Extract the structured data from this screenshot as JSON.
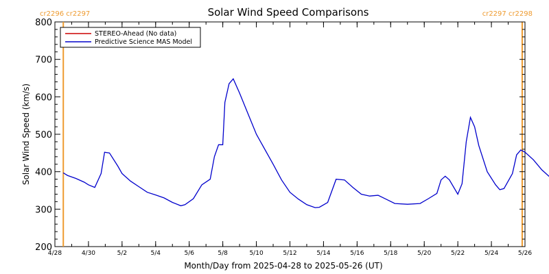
{
  "chart_data": {
    "type": "line",
    "title": "Solar Wind Speed Comparisons",
    "xlabel": "Month/Day from 2025-04-28 to 2025-05-26 (UT)",
    "ylabel": "Solar Wind Speed (km/s)",
    "xlim": [
      "2025-04-28",
      "2025-05-26"
    ],
    "ylim": [
      200,
      800
    ],
    "yticks": [
      200,
      300,
      400,
      500,
      600,
      700,
      800
    ],
    "xticks": [
      {
        "date": "2025-04-28",
        "label": "4/28"
      },
      {
        "date": "2025-04-30",
        "label": "4/30"
      },
      {
        "date": "2025-05-02",
        "label": "5/2"
      },
      {
        "date": "2025-05-04",
        "label": "5/4"
      },
      {
        "date": "2025-05-06",
        "label": "5/6"
      },
      {
        "date": "2025-05-08",
        "label": "5/8"
      },
      {
        "date": "2025-05-10",
        "label": "5/10"
      },
      {
        "date": "2025-05-12",
        "label": "5/12"
      },
      {
        "date": "2025-05-14",
        "label": "5/14"
      },
      {
        "date": "2025-05-16",
        "label": "5/16"
      },
      {
        "date": "2025-05-18",
        "label": "5/18"
      },
      {
        "date": "2025-05-20",
        "label": "5/20"
      },
      {
        "date": "2025-05-22",
        "label": "5/22"
      },
      {
        "date": "2025-05-24",
        "label": "5/24"
      },
      {
        "date": "2025-05-26",
        "label": "5/26"
      }
    ],
    "legend": {
      "placement": "top-left",
      "entries": [
        {
          "label": "STEREO-Ahead (No data)",
          "color": "#cc0000"
        },
        {
          "label": "Predictive Science MAS Model",
          "color": "#0000cc"
        }
      ]
    },
    "carrington_markers": [
      {
        "date": "2025-04-28 12:00",
        "left_label": "cr2296",
        "right_label": "cr2297",
        "side": "left"
      },
      {
        "date": "2025-05-25 20:00",
        "left_label": "cr2297",
        "right_label": "cr2298",
        "side": "right"
      }
    ],
    "marker_color": "#ee9a2e",
    "series": [
      {
        "name": "Predictive Science MAS Model",
        "color": "#0000cc",
        "points": [
          [
            "2025-04-28 12:00",
            397
          ],
          [
            "2025-04-28 18:00",
            390
          ],
          [
            "2025-04-29 06:00",
            382
          ],
          [
            "2025-04-29 18:00",
            372
          ],
          [
            "2025-04-30 00:00",
            365
          ],
          [
            "2025-04-30 09:00",
            358
          ],
          [
            "2025-04-30 18:00",
            395
          ],
          [
            "2025-04-30 23:00",
            452
          ],
          [
            "2025-05-01 06:00",
            450
          ],
          [
            "2025-05-01 18:00",
            415
          ],
          [
            "2025-05-02 00:00",
            395
          ],
          [
            "2025-05-02 12:00",
            375
          ],
          [
            "2025-05-03 00:00",
            360
          ],
          [
            "2025-05-03 12:00",
            345
          ],
          [
            "2025-05-04 00:00",
            338
          ],
          [
            "2025-05-04 12:00",
            330
          ],
          [
            "2025-05-05 00:00",
            318
          ],
          [
            "2025-05-05 12:00",
            309
          ],
          [
            "2025-05-05 18:00",
            312
          ],
          [
            "2025-05-06 06:00",
            328
          ],
          [
            "2025-05-06 18:00",
            365
          ],
          [
            "2025-05-07 06:00",
            380
          ],
          [
            "2025-05-07 12:00",
            440
          ],
          [
            "2025-05-07 18:00",
            472
          ],
          [
            "2025-05-08 00:00",
            472
          ],
          [
            "2025-05-08 03:00",
            585
          ],
          [
            "2025-05-08 09:00",
            635
          ],
          [
            "2025-05-08 15:00",
            648
          ],
          [
            "2025-05-09 00:00",
            610
          ],
          [
            "2025-05-09 12:00",
            555
          ],
          [
            "2025-05-10 00:00",
            500
          ],
          [
            "2025-05-11 00:00",
            420
          ],
          [
            "2025-05-11 12:00",
            378
          ],
          [
            "2025-05-12 00:00",
            345
          ],
          [
            "2025-05-12 12:00",
            327
          ],
          [
            "2025-05-13 00:00",
            312
          ],
          [
            "2025-05-13 12:00",
            304
          ],
          [
            "2025-05-13 18:00",
            305
          ],
          [
            "2025-05-14 06:00",
            318
          ],
          [
            "2025-05-14 18:00",
            380
          ],
          [
            "2025-05-15 06:00",
            378
          ],
          [
            "2025-05-15 18:00",
            358
          ],
          [
            "2025-05-16 06:00",
            340
          ],
          [
            "2025-05-16 18:00",
            335
          ],
          [
            "2025-05-17 06:00",
            337
          ],
          [
            "2025-05-17 18:00",
            326
          ],
          [
            "2025-05-18 06:00",
            315
          ],
          [
            "2025-05-19 00:00",
            313
          ],
          [
            "2025-05-19 18:00",
            315
          ],
          [
            "2025-05-20 06:00",
            328
          ],
          [
            "2025-05-20 18:00",
            342
          ],
          [
            "2025-05-21 00:00",
            378
          ],
          [
            "2025-05-21 06:00",
            388
          ],
          [
            "2025-05-21 12:00",
            378
          ],
          [
            "2025-05-22 00:00",
            340
          ],
          [
            "2025-05-22 06:00",
            368
          ],
          [
            "2025-05-22 12:00",
            480
          ],
          [
            "2025-05-22 18:00",
            545
          ],
          [
            "2025-05-23 00:00",
            520
          ],
          [
            "2025-05-23 06:00",
            470
          ],
          [
            "2025-05-23 18:00",
            400
          ],
          [
            "2025-05-24 06:00",
            365
          ],
          [
            "2025-05-24 12:00",
            352
          ],
          [
            "2025-05-24 18:00",
            355
          ],
          [
            "2025-05-25 06:00",
            395
          ],
          [
            "2025-05-25 12:00",
            445
          ],
          [
            "2025-05-25 18:00",
            458
          ],
          [
            "2025-05-26 00:00",
            452
          ],
          [
            "2025-05-26 12:00",
            432
          ],
          [
            "2025-05-27 00:00",
            405
          ],
          [
            "2025-05-27 12:00",
            385
          ],
          [
            "2025-05-27 18:00",
            375
          ],
          [
            "2025-05-28 00:00",
            372
          ]
        ]
      }
    ]
  }
}
